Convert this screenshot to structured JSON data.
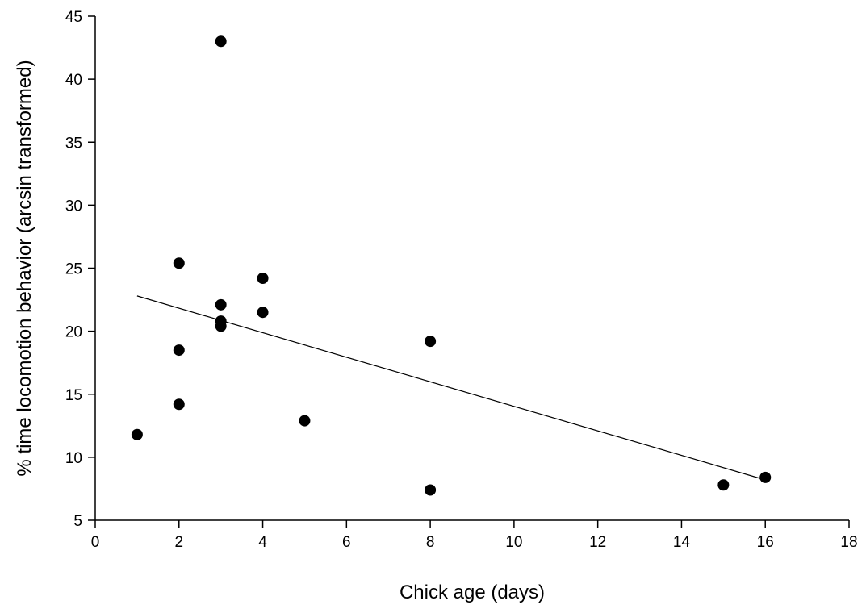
{
  "chart_data": {
    "type": "scatter",
    "xlabel": "Chick age (days)",
    "ylabel": "% time locomotion behavior (arcsin transformed)",
    "xlim": [
      0,
      18
    ],
    "ylim": [
      5,
      45
    ],
    "xticks": [
      0,
      2,
      4,
      6,
      8,
      10,
      12,
      14,
      16,
      18
    ],
    "yticks": [
      5,
      10,
      15,
      20,
      25,
      30,
      35,
      40,
      45
    ],
    "grid": false,
    "points": [
      {
        "x": 1,
        "y": 11.8
      },
      {
        "x": 2,
        "y": 25.4
      },
      {
        "x": 2,
        "y": 18.5
      },
      {
        "x": 2,
        "y": 14.2
      },
      {
        "x": 3,
        "y": 43.0
      },
      {
        "x": 3,
        "y": 22.1
      },
      {
        "x": 3,
        "y": 20.8
      },
      {
        "x": 3,
        "y": 20.4
      },
      {
        "x": 4,
        "y": 24.2
      },
      {
        "x": 4,
        "y": 21.5
      },
      {
        "x": 5,
        "y": 12.9
      },
      {
        "x": 8,
        "y": 19.2
      },
      {
        "x": 8,
        "y": 7.4
      },
      {
        "x": 15,
        "y": 7.8
      },
      {
        "x": 16,
        "y": 8.4
      }
    ],
    "trendline": {
      "x": [
        1,
        16
      ],
      "y": [
        22.8,
        8.2
      ]
    },
    "marker_color": "#000000",
    "line_color": "#000000"
  }
}
